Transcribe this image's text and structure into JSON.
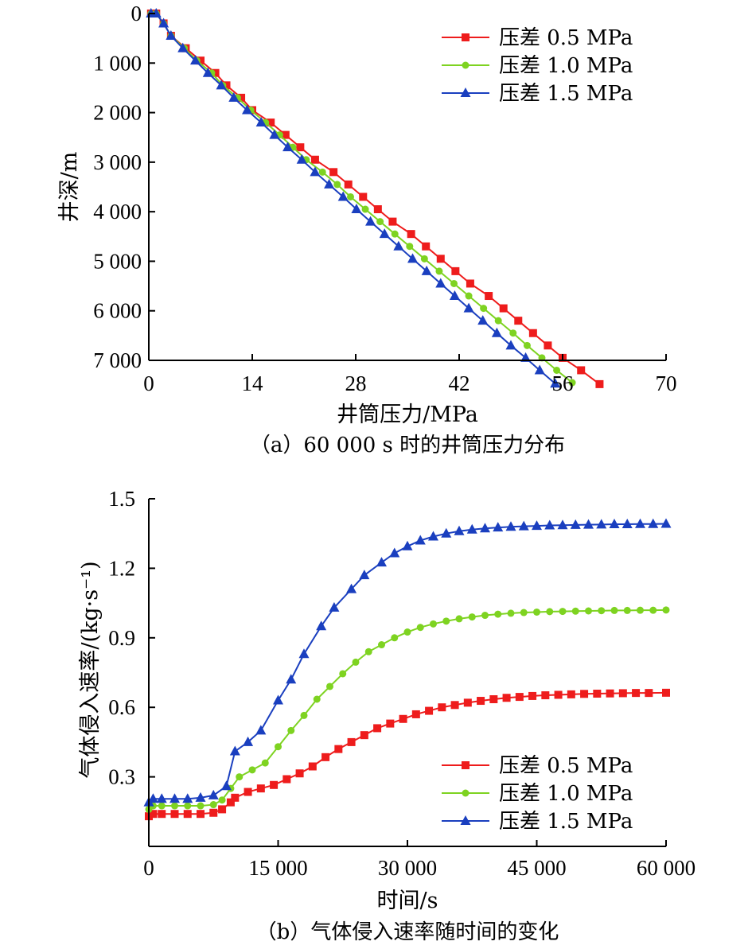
{
  "chart_data": [
    {
      "type": "line",
      "caption": "（a）60 000 s 时的井筒压力分布",
      "xlabel": "井筒压力/MPa",
      "ylabel": "井深/m",
      "xlim": [
        0,
        70
      ],
      "ylim": [
        0,
        7000
      ],
      "y_inverted": true,
      "grid": false,
      "legend_position": "top-right",
      "x_ticks": [
        0,
        14,
        28,
        42,
        56,
        70
      ],
      "x_tick_labels": [
        "0",
        "14",
        "28",
        "42",
        "56",
        "70"
      ],
      "y_ticks": [
        0,
        1000,
        2000,
        3000,
        4000,
        5000,
        6000,
        7000
      ],
      "y_tick_labels": [
        "0",
        "1 000",
        "2 000",
        "3 000",
        "4 000",
        "5 000",
        "6 000",
        "7 000"
      ],
      "series": [
        {
          "name": "压差 0.5 MPa",
          "color": "#ee1c1c",
          "marker": "square",
          "points": [
            [
              0.3,
              0
            ],
            [
              1,
              0
            ],
            [
              2,
              200
            ],
            [
              3,
              450
            ],
            [
              5,
              700
            ],
            [
              7,
              950
            ],
            [
              9,
              1200
            ],
            [
              10.5,
              1450
            ],
            [
              12.5,
              1700
            ],
            [
              14,
              1950
            ],
            [
              16.5,
              2200
            ],
            [
              18.5,
              2450
            ],
            [
              20.5,
              2700
            ],
            [
              22.5,
              2950
            ],
            [
              25,
              3200
            ],
            [
              27,
              3450
            ],
            [
              29,
              3700
            ],
            [
              31,
              3950
            ],
            [
              33,
              4200
            ],
            [
              35.5,
              4450
            ],
            [
              37.5,
              4700
            ],
            [
              39.5,
              4950
            ],
            [
              41.5,
              5200
            ],
            [
              43.5,
              5450
            ],
            [
              46,
              5700
            ],
            [
              48,
              5950
            ],
            [
              50,
              6200
            ],
            [
              52,
              6450
            ],
            [
              54,
              6700
            ],
            [
              56,
              6950
            ],
            [
              58.5,
              7200
            ],
            [
              61,
              7480
            ]
          ]
        },
        {
          "name": "压差 1.0 MPa",
          "color": "#7ed321",
          "marker": "circle",
          "points": [
            [
              0.3,
              0
            ],
            [
              1,
              0
            ],
            [
              2,
              200
            ],
            [
              3,
              450
            ],
            [
              4.8,
              700
            ],
            [
              6.5,
              950
            ],
            [
              8.5,
              1200
            ],
            [
              10,
              1450
            ],
            [
              12,
              1700
            ],
            [
              13.8,
              1950
            ],
            [
              15.8,
              2200
            ],
            [
              17.7,
              2450
            ],
            [
              19.5,
              2700
            ],
            [
              21.3,
              2950
            ],
            [
              23.5,
              3200
            ],
            [
              25.5,
              3450
            ],
            [
              27.3,
              3700
            ],
            [
              29.3,
              3950
            ],
            [
              31.3,
              4200
            ],
            [
              33.3,
              4450
            ],
            [
              35.3,
              4700
            ],
            [
              37.3,
              4950
            ],
            [
              39.3,
              5200
            ],
            [
              41.3,
              5450
            ],
            [
              43.3,
              5700
            ],
            [
              45.3,
              5950
            ],
            [
              47.3,
              6200
            ],
            [
              49.3,
              6450
            ],
            [
              51.2,
              6700
            ],
            [
              53.2,
              6950
            ],
            [
              55.2,
              7200
            ],
            [
              57.3,
              7450
            ]
          ]
        },
        {
          "name": "压差 1.5 MPa",
          "color": "#1a3fbf",
          "marker": "triangle",
          "points": [
            [
              0.3,
              0
            ],
            [
              1,
              0
            ],
            [
              2,
              200
            ],
            [
              3,
              450
            ],
            [
              4.6,
              700
            ],
            [
              6.3,
              950
            ],
            [
              8,
              1200
            ],
            [
              9.8,
              1450
            ],
            [
              11.5,
              1700
            ],
            [
              13.3,
              1950
            ],
            [
              15.2,
              2200
            ],
            [
              17,
              2450
            ],
            [
              18.8,
              2700
            ],
            [
              20.7,
              2950
            ],
            [
              22.5,
              3200
            ],
            [
              24.4,
              3450
            ],
            [
              26.3,
              3700
            ],
            [
              28.1,
              3950
            ],
            [
              30,
              4200
            ],
            [
              31.9,
              4450
            ],
            [
              33.8,
              4700
            ],
            [
              35.7,
              4950
            ],
            [
              37.6,
              5200
            ],
            [
              39.5,
              5450
            ],
            [
              41.4,
              5700
            ],
            [
              43.3,
              5950
            ],
            [
              45.2,
              6200
            ],
            [
              47.1,
              6450
            ],
            [
              49,
              6700
            ],
            [
              51,
              6950
            ],
            [
              52.9,
              7200
            ],
            [
              55,
              7470
            ]
          ]
        }
      ]
    },
    {
      "type": "line",
      "caption": "（b）气体侵入速率随时间的变化",
      "xlabel": "时间/s",
      "ylabel": "气体侵入速率/(kg·s⁻¹)",
      "xlim": [
        0,
        60000
      ],
      "ylim": [
        0,
        1.5
      ],
      "grid": false,
      "legend_position": "bottom-right",
      "x_ticks": [
        0,
        15000,
        30000,
        45000,
        60000
      ],
      "x_tick_labels": [
        "0",
        "15 000",
        "30 000",
        "45 000",
        "60 000"
      ],
      "y_ticks": [
        0.3,
        0.6,
        0.9,
        1.2,
        1.5
      ],
      "y_tick_labels": [
        "0.3",
        "0.6",
        "0.9",
        "1.2",
        "1.5"
      ],
      "series": [
        {
          "name": "压差 0.5 MPa",
          "color": "#ee1c1c",
          "marker": "square",
          "points": [
            [
              0,
              0.13
            ],
            [
              500,
              0.14
            ],
            [
              1500,
              0.14
            ],
            [
              3000,
              0.14
            ],
            [
              4500,
              0.14
            ],
            [
              6000,
              0.14
            ],
            [
              7500,
              0.145
            ],
            [
              8500,
              0.16
            ],
            [
              9500,
              0.19
            ],
            [
              10000,
              0.21
            ],
            [
              11500,
              0.235
            ],
            [
              13000,
              0.25
            ],
            [
              14500,
              0.265
            ],
            [
              16000,
              0.29
            ],
            [
              17500,
              0.315
            ],
            [
              19000,
              0.345
            ],
            [
              20500,
              0.385
            ],
            [
              22000,
              0.42
            ],
            [
              23500,
              0.45
            ],
            [
              25000,
              0.48
            ],
            [
              26500,
              0.51
            ],
            [
              28000,
              0.53
            ],
            [
              29500,
              0.55
            ],
            [
              31000,
              0.57
            ],
            [
              32500,
              0.585
            ],
            [
              34000,
              0.6
            ],
            [
              35500,
              0.61
            ],
            [
              37000,
              0.62
            ],
            [
              38500,
              0.628
            ],
            [
              40000,
              0.635
            ],
            [
              41500,
              0.641
            ],
            [
              43000,
              0.645
            ],
            [
              44500,
              0.649
            ],
            [
              46000,
              0.652
            ],
            [
              47500,
              0.654
            ],
            [
              49000,
              0.656
            ],
            [
              50500,
              0.658
            ],
            [
              52000,
              0.659
            ],
            [
              53500,
              0.66
            ],
            [
              55000,
              0.661
            ],
            [
              56500,
              0.662
            ],
            [
              58000,
              0.662
            ],
            [
              60000,
              0.663
            ]
          ]
        },
        {
          "name": "压差 1.0 MPa",
          "color": "#7ed321",
          "marker": "circle",
          "points": [
            [
              0,
              0.16
            ],
            [
              500,
              0.175
            ],
            [
              1500,
              0.175
            ],
            [
              3000,
              0.175
            ],
            [
              4500,
              0.175
            ],
            [
              6000,
              0.175
            ],
            [
              7500,
              0.18
            ],
            [
              8500,
              0.2
            ],
            [
              9500,
              0.25
            ],
            [
              10500,
              0.3
            ],
            [
              12000,
              0.33
            ],
            [
              13500,
              0.36
            ],
            [
              15000,
              0.43
            ],
            [
              16500,
              0.5
            ],
            [
              18000,
              0.565
            ],
            [
              19500,
              0.635
            ],
            [
              21000,
              0.69
            ],
            [
              22500,
              0.745
            ],
            [
              24000,
              0.795
            ],
            [
              25500,
              0.84
            ],
            [
              27000,
              0.87
            ],
            [
              28500,
              0.9
            ],
            [
              30000,
              0.925
            ],
            [
              31500,
              0.945
            ],
            [
              33000,
              0.96
            ],
            [
              34500,
              0.972
            ],
            [
              36000,
              0.982
            ],
            [
              37500,
              0.99
            ],
            [
              39000,
              0.997
            ],
            [
              40500,
              1.002
            ],
            [
              42000,
              1.006
            ],
            [
              43500,
              1.009
            ],
            [
              45000,
              1.011
            ],
            [
              46500,
              1.013
            ],
            [
              48000,
              1.014
            ],
            [
              49500,
              1.015
            ],
            [
              51000,
              1.016
            ],
            [
              52500,
              1.017
            ],
            [
              54000,
              1.018
            ],
            [
              55500,
              1.018
            ],
            [
              57000,
              1.019
            ],
            [
              58500,
              1.019
            ],
            [
              60000,
              1.02
            ]
          ]
        },
        {
          "name": "压差 1.5 MPa",
          "color": "#1a3fbf",
          "marker": "triangle",
          "points": [
            [
              0,
              0.19
            ],
            [
              500,
              0.205
            ],
            [
              1500,
              0.205
            ],
            [
              3000,
              0.205
            ],
            [
              4500,
              0.205
            ],
            [
              6000,
              0.21
            ],
            [
              7500,
              0.22
            ],
            [
              9000,
              0.26
            ],
            [
              10000,
              0.41
            ],
            [
              11500,
              0.45
            ],
            [
              13000,
              0.5
            ],
            [
              15000,
              0.63
            ],
            [
              16500,
              0.72
            ],
            [
              18000,
              0.83
            ],
            [
              20000,
              0.95
            ],
            [
              21500,
              1.03
            ],
            [
              23500,
              1.11
            ],
            [
              25000,
              1.17
            ],
            [
              27000,
              1.225
            ],
            [
              28500,
              1.265
            ],
            [
              30000,
              1.295
            ],
            [
              31500,
              1.32
            ],
            [
              33000,
              1.337
            ],
            [
              34500,
              1.35
            ],
            [
              36000,
              1.36
            ],
            [
              37500,
              1.367
            ],
            [
              39000,
              1.372
            ],
            [
              40500,
              1.376
            ],
            [
              42000,
              1.379
            ],
            [
              43500,
              1.381
            ],
            [
              45000,
              1.383
            ],
            [
              46500,
              1.385
            ],
            [
              48000,
              1.386
            ],
            [
              49500,
              1.387
            ],
            [
              51000,
              1.388
            ],
            [
              52500,
              1.389
            ],
            [
              54000,
              1.39
            ],
            [
              55500,
              1.39
            ],
            [
              57000,
              1.391
            ],
            [
              58500,
              1.391
            ],
            [
              60000,
              1.392
            ]
          ]
        }
      ]
    }
  ]
}
